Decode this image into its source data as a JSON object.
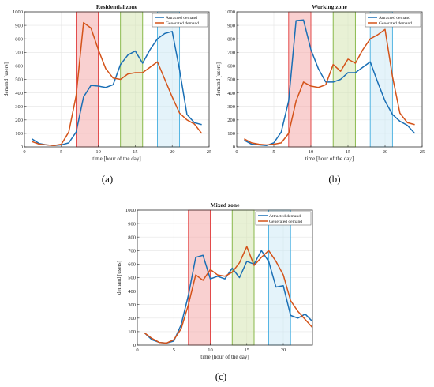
{
  "chart_data": [
    {
      "id": "a",
      "type": "line",
      "title": "Residential zone",
      "caption": "(a)",
      "xlabel": "time [hour of the day]",
      "ylabel": "demand [users]",
      "xlim": [
        0,
        25
      ],
      "ylim": [
        0,
        1000
      ],
      "xticks": [
        0,
        5,
        10,
        15,
        20,
        25
      ],
      "yticks": [
        0,
        100,
        200,
        300,
        400,
        500,
        600,
        700,
        800,
        900,
        1000
      ],
      "grid": true,
      "legend_position": "top-right",
      "x": [
        1,
        2,
        3,
        4,
        5,
        6,
        7,
        8,
        9,
        10,
        11,
        12,
        13,
        14,
        15,
        16,
        17,
        18,
        19,
        20,
        21,
        22,
        23,
        24
      ],
      "series": [
        {
          "name": "Attracted demand",
          "color": "#1a6fb5",
          "values": [
            60,
            25,
            15,
            10,
            15,
            30,
            110,
            370,
            455,
            450,
            440,
            460,
            610,
            680,
            710,
            620,
            720,
            800,
            840,
            855,
            570,
            240,
            180,
            165
          ]
        },
        {
          "name": "Generated demand",
          "color": "#d45319",
          "values": [
            40,
            20,
            15,
            10,
            20,
            110,
            380,
            920,
            880,
            720,
            580,
            510,
            500,
            540,
            550,
            550,
            590,
            630,
            500,
            370,
            250,
            200,
            170,
            100
          ]
        }
      ],
      "highlight_bands": [
        {
          "from": 7,
          "to": 10,
          "color": "#f4a9a9",
          "border": "#e03a3a"
        },
        {
          "from": 13,
          "to": 16,
          "color": "#d6e6b3",
          "border": "#7fb23b"
        },
        {
          "from": 18,
          "to": 21,
          "color": "#cde9f6",
          "border": "#45aee0"
        }
      ]
    },
    {
      "id": "b",
      "type": "line",
      "title": "Working zone",
      "caption": "(b)",
      "xlabel": "time [hour of the day]",
      "ylabel": "demand [users]",
      "xlim": [
        0,
        25
      ],
      "ylim": [
        0,
        1000
      ],
      "xticks": [
        0,
        5,
        10,
        15,
        20,
        25
      ],
      "yticks": [
        0,
        100,
        200,
        300,
        400,
        500,
        600,
        700,
        800,
        900,
        1000
      ],
      "grid": true,
      "legend_position": "top-right",
      "x": [
        1,
        2,
        3,
        4,
        5,
        6,
        7,
        8,
        9,
        10,
        11,
        12,
        13,
        14,
        15,
        16,
        17,
        18,
        19,
        20,
        21,
        22,
        23,
        24
      ],
      "series": [
        {
          "name": "Attracted demand",
          "color": "#1a6fb5",
          "values": [
            50,
            20,
            15,
            10,
            30,
            110,
            340,
            935,
            940,
            720,
            580,
            480,
            480,
            500,
            550,
            550,
            590,
            630,
            480,
            340,
            240,
            190,
            160,
            100
          ]
        },
        {
          "name": "Generated demand",
          "color": "#d45319",
          "values": [
            60,
            30,
            20,
            15,
            20,
            30,
            100,
            340,
            480,
            450,
            440,
            460,
            610,
            560,
            650,
            620,
            720,
            800,
            830,
            870,
            520,
            250,
            180,
            165
          ]
        }
      ],
      "highlight_bands": [
        {
          "from": 7,
          "to": 10,
          "color": "#f4a9a9",
          "border": "#e03a3a"
        },
        {
          "from": 13,
          "to": 16,
          "color": "#d6e6b3",
          "border": "#7fb23b"
        },
        {
          "from": 18,
          "to": 21,
          "color": "#cde9f6",
          "border": "#45aee0"
        }
      ]
    },
    {
      "id": "c",
      "type": "line",
      "title": "Mixed zone",
      "caption": "(c)",
      "xlabel": "time [hour of the day]",
      "ylabel": "demand [users]",
      "xlim": [
        0,
        24
      ],
      "ylim": [
        0,
        1000
      ],
      "xticks": [
        0,
        5,
        10,
        15,
        20
      ],
      "yticks": [
        0,
        100,
        200,
        300,
        400,
        500,
        600,
        700,
        800,
        900,
        1000
      ],
      "grid": true,
      "legend_position": "top-right",
      "x": [
        1,
        2,
        3,
        4,
        5,
        6,
        7,
        8,
        9,
        10,
        11,
        12,
        13,
        14,
        15,
        16,
        17,
        18,
        19,
        20,
        21,
        22,
        23,
        24
      ],
      "series": [
        {
          "name": "Attracted demand",
          "color": "#1a6fb5",
          "values": [
            90,
            40,
            20,
            15,
            30,
            150,
            370,
            650,
            665,
            490,
            510,
            490,
            570,
            500,
            620,
            600,
            700,
            620,
            430,
            440,
            220,
            200,
            230,
            175
          ]
        },
        {
          "name": "Generated demand",
          "color": "#d45319",
          "values": [
            90,
            50,
            20,
            15,
            40,
            120,
            300,
            520,
            480,
            560,
            520,
            510,
            540,
            610,
            730,
            590,
            650,
            700,
            620,
            520,
            330,
            250,
            190,
            130
          ]
        }
      ],
      "highlight_bands": [
        {
          "from": 7,
          "to": 10,
          "color": "#f4a9a9",
          "border": "#e03a3a"
        },
        {
          "from": 13,
          "to": 16,
          "color": "#d6e6b3",
          "border": "#7fb23b"
        },
        {
          "from": 18,
          "to": 21,
          "color": "#cde9f6",
          "border": "#45aee0"
        }
      ]
    }
  ]
}
